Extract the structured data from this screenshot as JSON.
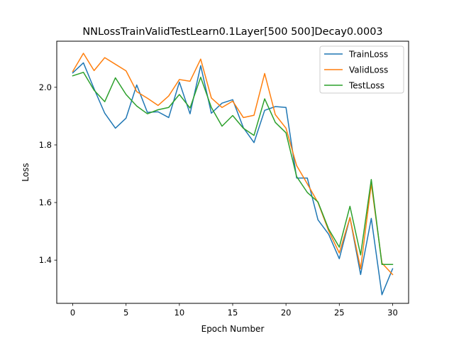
{
  "chart_data": {
    "type": "line",
    "title": "NNLossTrainValidTestLearn0.1Layer[500 500]Decay0.0003",
    "xlabel": "Epoch Number",
    "ylabel": "Loss",
    "xlim": [
      -1.5,
      31.5
    ],
    "ylim": [
      1.25,
      2.16
    ],
    "xticks": [
      0,
      5,
      10,
      15,
      20,
      25,
      30
    ],
    "yticks": [
      1.4,
      1.6,
      1.8,
      2.0
    ],
    "grid": false,
    "legend_position": "top-right",
    "x": [
      0,
      1,
      2,
      3,
      4,
      5,
      6,
      7,
      8,
      9,
      10,
      11,
      12,
      13,
      14,
      15,
      16,
      17,
      18,
      19,
      20,
      21,
      22,
      23,
      24,
      25,
      26,
      27,
      28,
      29,
      30
    ],
    "series": [
      {
        "name": "TrainLoss",
        "color": "#1f77b4",
        "values": [
          2.05,
          2.085,
          1.995,
          1.91,
          1.858,
          1.893,
          2.008,
          1.913,
          1.915,
          1.895,
          2.018,
          1.908,
          2.075,
          1.91,
          1.945,
          1.957,
          1.86,
          1.808,
          1.92,
          1.933,
          1.93,
          1.685,
          1.685,
          1.54,
          1.49,
          1.405,
          1.548,
          1.35,
          1.545,
          1.28,
          1.37
        ]
      },
      {
        "name": "ValidLoss",
        "color": "#ff7f0e",
        "values": [
          2.055,
          2.118,
          2.058,
          2.103,
          2.08,
          2.057,
          1.985,
          1.962,
          1.937,
          1.97,
          2.027,
          2.021,
          2.098,
          1.963,
          1.93,
          1.952,
          1.895,
          1.903,
          2.048,
          1.905,
          1.858,
          1.728,
          1.665,
          1.6,
          1.502,
          1.425,
          1.548,
          1.37,
          1.665,
          1.39,
          1.35
        ]
      },
      {
        "name": "TestLoss",
        "color": "#2ca02c",
        "values": [
          2.04,
          2.052,
          1.99,
          1.95,
          2.033,
          1.975,
          1.935,
          1.908,
          1.922,
          1.93,
          1.975,
          1.928,
          2.035,
          1.93,
          1.865,
          1.902,
          1.858,
          1.833,
          1.96,
          1.878,
          1.842,
          1.69,
          1.635,
          1.602,
          1.508,
          1.445,
          1.587,
          1.418,
          1.68,
          1.385,
          1.385
        ]
      }
    ]
  }
}
